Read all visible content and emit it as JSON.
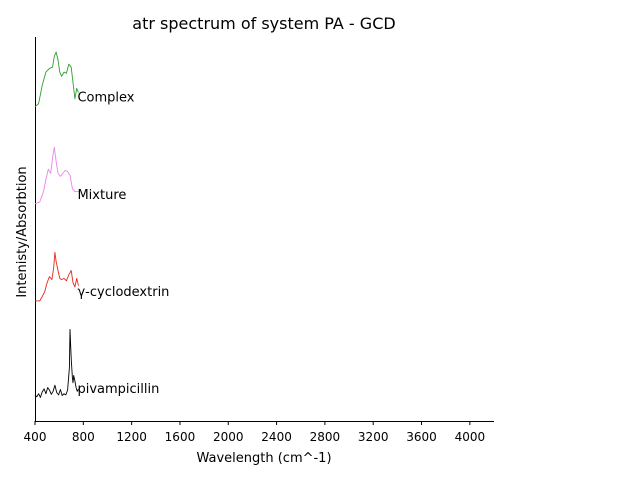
{
  "chart_data": {
    "type": "line",
    "title": "atr spectrum of system PA - GCD",
    "xlabel": "Wavelength (cm^-1)",
    "ylabel": "Intenisty/Absorbtion",
    "xlim": [
      400,
      4200
    ],
    "xticks": [
      400,
      800,
      1200,
      1600,
      2000,
      2400,
      2800,
      3200,
      3600,
      4000
    ],
    "grid": false,
    "series": [
      {
        "name": "pivampicillin",
        "color": "#000000",
        "offset": 0,
        "x": [
          400,
          415,
          430,
          445,
          460,
          475,
          490,
          505,
          520,
          535,
          550,
          565,
          580,
          595,
          610,
          625,
          640,
          655,
          670,
          685,
          690,
          700,
          710,
          715,
          720,
          730,
          740,
          750,
          760
        ],
        "y": [
          0.1,
          0.07,
          0.12,
          0.06,
          0.15,
          0.2,
          0.12,
          0.22,
          0.18,
          0.11,
          0.16,
          0.26,
          0.14,
          0.1,
          0.19,
          0.09,
          0.12,
          0.1,
          0.18,
          0.55,
          1.18,
          0.7,
          0.38,
          0.3,
          0.42,
          0.33,
          0.22,
          0.16,
          0.2
        ]
      },
      {
        "name": "γ-cyclodextrin",
        "color": "#e8291c",
        "offset": 1.6,
        "x": [
          400,
          440,
          460,
          480,
          500,
          520,
          540,
          555,
          565,
          575,
          590,
          605,
          620,
          640,
          660,
          680,
          700,
          715,
          730,
          745,
          760
        ],
        "y": [
          0.05,
          0.05,
          0.12,
          0.2,
          0.35,
          0.45,
          0.4,
          0.6,
          0.85,
          0.7,
          0.55,
          0.42,
          0.4,
          0.42,
          0.38,
          0.48,
          0.55,
          0.35,
          0.28,
          0.42,
          0.3
        ]
      },
      {
        "name": "Mixture",
        "color": "#ee82ee",
        "offset": 3.2,
        "x": [
          400,
          440,
          470,
          490,
          510,
          530,
          545,
          560,
          575,
          590,
          610,
          630,
          650,
          670,
          690,
          710,
          730,
          760
        ],
        "y": [
          0.05,
          0.08,
          0.25,
          0.45,
          0.62,
          0.55,
          0.8,
          0.98,
          0.75,
          0.55,
          0.5,
          0.55,
          0.6,
          0.58,
          0.52,
          0.3,
          0.25,
          0.25
        ]
      },
      {
        "name": "Complex",
        "color": "#2ca02c",
        "offset": 4.8,
        "x": [
          400,
          430,
          460,
          490,
          520,
          545,
          560,
          575,
          590,
          605,
          620,
          640,
          660,
          680,
          700,
          715,
          730,
          745,
          760
        ],
        "y": [
          0.05,
          0.1,
          0.4,
          0.62,
          0.68,
          0.7,
          0.88,
          0.95,
          0.82,
          0.62,
          0.55,
          0.62,
          0.6,
          0.75,
          0.7,
          0.45,
          0.18,
          0.35,
          0.28
        ]
      }
    ]
  }
}
